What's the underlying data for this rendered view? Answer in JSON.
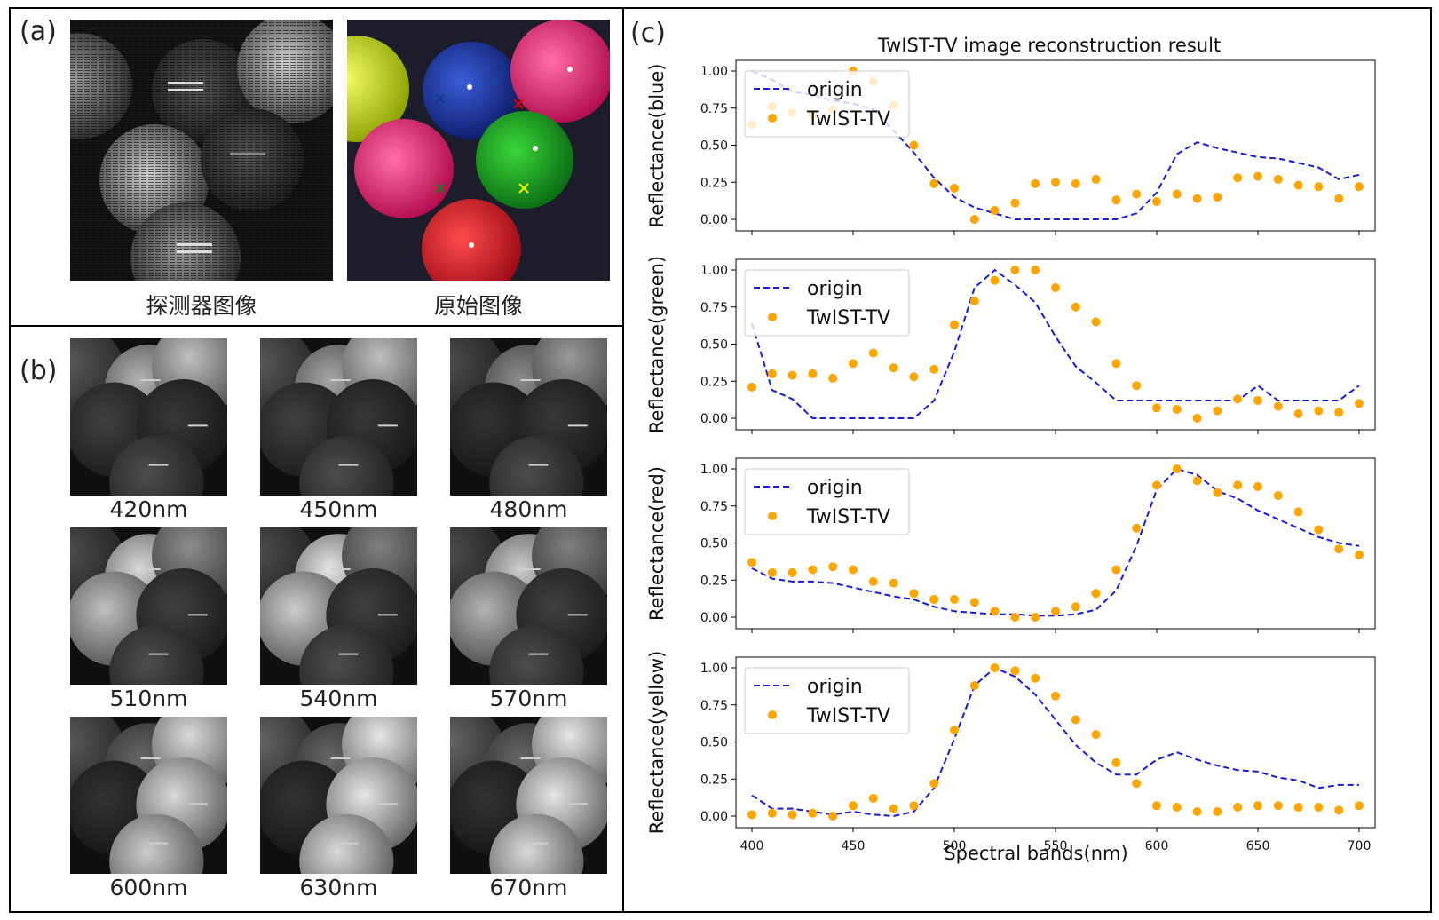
{
  "panel_a": {
    "label": "(a)",
    "detector_caption": "探测器图像",
    "original_caption": "原始图像"
  },
  "panel_b": {
    "label": "(b)",
    "tiles": [
      {
        "caption": "420nm",
        "balls": [
          0.35,
          0.7,
          0.75,
          0.25,
          0.22,
          0.3
        ]
      },
      {
        "caption": "450nm",
        "balls": [
          0.35,
          0.65,
          0.75,
          0.25,
          0.22,
          0.3
        ]
      },
      {
        "caption": "480nm",
        "balls": [
          0.3,
          0.55,
          0.6,
          0.2,
          0.22,
          0.3
        ]
      },
      {
        "caption": "510nm",
        "balls": [
          0.3,
          0.85,
          0.55,
          0.75,
          0.25,
          0.3
        ]
      },
      {
        "caption": "540nm",
        "balls": [
          0.3,
          0.9,
          0.5,
          0.8,
          0.25,
          0.3
        ]
      },
      {
        "caption": "570nm",
        "balls": [
          0.3,
          0.8,
          0.5,
          0.7,
          0.25,
          0.3
        ]
      },
      {
        "caption": "600nm",
        "balls": [
          0.35,
          0.4,
          0.85,
          0.2,
          0.85,
          0.8
        ]
      },
      {
        "caption": "630nm",
        "balls": [
          0.4,
          0.4,
          0.9,
          0.2,
          0.9,
          0.85
        ]
      },
      {
        "caption": "670nm",
        "balls": [
          0.4,
          0.4,
          0.9,
          0.2,
          0.9,
          0.85
        ]
      }
    ]
  },
  "panel_c": {
    "label": "(c)",
    "title": "TwIST-TV image reconstruction result",
    "xlabel": "Spectral bands(nm)"
  },
  "colors": {
    "origin_line": "#1a1adb",
    "twist_points": "#ffa500"
  },
  "chart_data": [
    {
      "type": "line",
      "ylabel": "Reflectance(blue)",
      "xlim": [
        400,
        700
      ],
      "ylim": [
        0,
        1
      ],
      "xticks": [
        400,
        450,
        500,
        550,
        600,
        650,
        700
      ],
      "yticks": [
        "0.00",
        "0.25",
        "0.50",
        "0.75",
        "1.00"
      ],
      "legend": "top-left",
      "series": [
        {
          "name": "origin",
          "style": "dashed",
          "x": [
            400,
            410,
            420,
            430,
            440,
            450,
            460,
            470,
            480,
            490,
            500,
            510,
            520,
            530,
            540,
            550,
            560,
            570,
            580,
            590,
            600,
            610,
            620,
            630,
            640,
            650,
            660,
            670,
            680,
            690,
            700
          ],
          "values": [
            1.0,
            0.94,
            0.86,
            0.84,
            0.8,
            0.78,
            0.74,
            0.6,
            0.45,
            0.28,
            0.15,
            0.08,
            0.04,
            0.0,
            0.0,
            0.0,
            0.0,
            0.0,
            0.0,
            0.04,
            0.18,
            0.44,
            0.52,
            0.48,
            0.45,
            0.42,
            0.41,
            0.38,
            0.35,
            0.27,
            0.3
          ]
        },
        {
          "name": "TwIST-TV",
          "style": "points",
          "x": [
            400,
            410,
            420,
            430,
            440,
            450,
            460,
            470,
            480,
            490,
            500,
            510,
            520,
            530,
            540,
            550,
            560,
            570,
            580,
            590,
            600,
            610,
            620,
            630,
            640,
            650,
            660,
            670,
            680,
            690,
            700
          ],
          "values": [
            0.64,
            0.76,
            0.72,
            0.7,
            0.74,
            1.0,
            0.93,
            0.77,
            0.5,
            0.24,
            0.21,
            0.0,
            0.06,
            0.11,
            0.24,
            0.25,
            0.24,
            0.27,
            0.13,
            0.17,
            0.12,
            0.17,
            0.14,
            0.15,
            0.28,
            0.29,
            0.27,
            0.23,
            0.22,
            0.14,
            0.22
          ]
        }
      ]
    },
    {
      "type": "line",
      "ylabel": "Reflectance(green)",
      "xlim": [
        400,
        700
      ],
      "ylim": [
        0,
        1
      ],
      "xticks": [
        400,
        450,
        500,
        550,
        600,
        650,
        700
      ],
      "yticks": [
        "0.00",
        "0.25",
        "0.50",
        "0.75",
        "1.00"
      ],
      "legend": "top-left",
      "series": [
        {
          "name": "origin",
          "style": "dashed",
          "x": [
            400,
            410,
            420,
            430,
            440,
            450,
            460,
            470,
            480,
            490,
            500,
            510,
            520,
            530,
            540,
            550,
            560,
            570,
            580,
            590,
            600,
            610,
            620,
            630,
            640,
            650,
            660,
            670,
            680,
            690,
            700
          ],
          "values": [
            0.64,
            0.19,
            0.13,
            0.0,
            0.0,
            0.0,
            0.0,
            0.0,
            0.0,
            0.12,
            0.45,
            0.88,
            1.0,
            0.9,
            0.78,
            0.55,
            0.35,
            0.24,
            0.12,
            0.12,
            0.12,
            0.12,
            0.12,
            0.12,
            0.12,
            0.22,
            0.12,
            0.12,
            0.12,
            0.12,
            0.22
          ]
        },
        {
          "name": "TwIST-TV",
          "style": "points",
          "x": [
            400,
            410,
            420,
            430,
            440,
            450,
            460,
            470,
            480,
            490,
            500,
            510,
            520,
            530,
            540,
            550,
            560,
            570,
            580,
            590,
            600,
            610,
            620,
            630,
            640,
            650,
            660,
            670,
            680,
            690,
            700
          ],
          "values": [
            0.21,
            0.3,
            0.29,
            0.3,
            0.27,
            0.37,
            0.44,
            0.34,
            0.28,
            0.33,
            0.63,
            0.79,
            0.93,
            1.0,
            1.0,
            0.88,
            0.75,
            0.65,
            0.37,
            0.22,
            0.07,
            0.06,
            0.0,
            0.05,
            0.13,
            0.12,
            0.08,
            0.03,
            0.05,
            0.04,
            0.1
          ]
        }
      ]
    },
    {
      "type": "line",
      "ylabel": "Reflectance(red)",
      "xlim": [
        400,
        700
      ],
      "ylim": [
        0,
        1
      ],
      "xticks": [
        400,
        450,
        500,
        550,
        600,
        650,
        700
      ],
      "yticks": [
        "0.00",
        "0.25",
        "0.50",
        "0.75",
        "1.00"
      ],
      "legend": "top-left",
      "series": [
        {
          "name": "origin",
          "style": "dashed",
          "x": [
            400,
            410,
            420,
            430,
            440,
            450,
            460,
            470,
            480,
            490,
            500,
            510,
            520,
            530,
            540,
            550,
            560,
            570,
            580,
            590,
            600,
            610,
            620,
            630,
            640,
            650,
            660,
            670,
            680,
            690,
            700
          ],
          "values": [
            0.33,
            0.26,
            0.24,
            0.24,
            0.23,
            0.2,
            0.17,
            0.14,
            0.12,
            0.07,
            0.04,
            0.03,
            0.02,
            0.02,
            0.01,
            0.01,
            0.02,
            0.05,
            0.18,
            0.48,
            0.86,
            1.0,
            0.96,
            0.85,
            0.8,
            0.72,
            0.66,
            0.6,
            0.54,
            0.5,
            0.48
          ]
        },
        {
          "name": "TwIST-TV",
          "style": "points",
          "x": [
            400,
            410,
            420,
            430,
            440,
            450,
            460,
            470,
            480,
            490,
            500,
            510,
            520,
            530,
            540,
            550,
            560,
            570,
            580,
            590,
            600,
            610,
            620,
            630,
            640,
            650,
            660,
            670,
            680,
            690,
            700
          ],
          "values": [
            0.37,
            0.3,
            0.3,
            0.32,
            0.34,
            0.32,
            0.24,
            0.23,
            0.16,
            0.12,
            0.12,
            0.1,
            0.04,
            0.0,
            0.0,
            0.04,
            0.07,
            0.16,
            0.32,
            0.6,
            0.89,
            1.0,
            0.92,
            0.84,
            0.89,
            0.88,
            0.82,
            0.71,
            0.59,
            0.46,
            0.42
          ]
        }
      ]
    },
    {
      "type": "line",
      "ylabel": "Reflectance(yellow)",
      "xlim": [
        400,
        700
      ],
      "ylim": [
        0,
        1
      ],
      "xticks": [
        400,
        450,
        500,
        550,
        600,
        650,
        700
      ],
      "yticks": [
        "0.00",
        "0.25",
        "0.50",
        "0.75",
        "1.00"
      ],
      "legend": "top-left",
      "series": [
        {
          "name": "origin",
          "style": "dashed",
          "x": [
            400,
            410,
            420,
            430,
            440,
            450,
            460,
            470,
            480,
            490,
            500,
            510,
            520,
            530,
            540,
            550,
            560,
            570,
            580,
            590,
            600,
            610,
            620,
            630,
            640,
            650,
            660,
            670,
            680,
            690,
            700
          ],
          "values": [
            0.14,
            0.05,
            0.05,
            0.03,
            0.01,
            0.03,
            0.01,
            0.0,
            0.03,
            0.19,
            0.52,
            0.88,
            1.0,
            0.94,
            0.82,
            0.65,
            0.48,
            0.36,
            0.28,
            0.28,
            0.38,
            0.43,
            0.38,
            0.34,
            0.31,
            0.3,
            0.26,
            0.24,
            0.19,
            0.21,
            0.21
          ]
        },
        {
          "name": "TwIST-TV",
          "style": "points",
          "x": [
            400,
            410,
            420,
            430,
            440,
            450,
            460,
            470,
            480,
            490,
            500,
            510,
            520,
            530,
            540,
            550,
            560,
            570,
            580,
            590,
            600,
            610,
            620,
            630,
            640,
            650,
            660,
            670,
            680,
            690,
            700
          ],
          "values": [
            0.01,
            0.02,
            0.01,
            0.02,
            0.0,
            0.07,
            0.12,
            0.05,
            0.07,
            0.22,
            0.58,
            0.88,
            1.0,
            0.98,
            0.93,
            0.81,
            0.65,
            0.55,
            0.36,
            0.22,
            0.07,
            0.06,
            0.03,
            0.03,
            0.06,
            0.07,
            0.07,
            0.06,
            0.06,
            0.04,
            0.07
          ]
        }
      ]
    }
  ]
}
